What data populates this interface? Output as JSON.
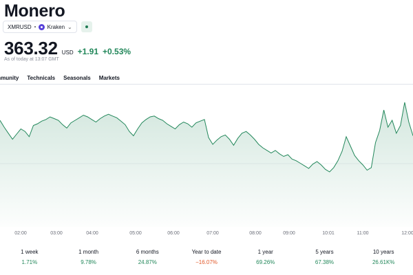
{
  "header": {
    "title": "Monero",
    "symbol": "XMRUSD",
    "exchange": "Kraken"
  },
  "quote": {
    "price": "363.32",
    "currency": "USD",
    "change_abs": "+1.91",
    "change_pct": "+0.53%",
    "as_of": "As of today at 13:07 GMT"
  },
  "tabs": [
    {
      "label": "mmunity"
    },
    {
      "label": "Technicals"
    },
    {
      "label": "Seasonals"
    },
    {
      "label": "Markets"
    }
  ],
  "chart_data": {
    "type": "area",
    "x_ticks": [
      "02:00",
      "03:00",
      "04:00",
      "05:00",
      "06:00",
      "07:00",
      "08:00",
      "09:00",
      "10:01",
      "11:00",
      "12:00"
    ],
    "y_range": [
      356,
      372
    ],
    "line_color": "#22875a",
    "values": [
      368.4,
      367.6,
      366.9,
      366.2,
      366.8,
      367.4,
      367.1,
      366.5,
      367.8,
      368.0,
      368.3,
      368.5,
      368.8,
      368.6,
      368.4,
      367.9,
      367.5,
      368.1,
      368.4,
      368.7,
      369.0,
      368.8,
      368.5,
      368.2,
      368.6,
      368.9,
      369.1,
      368.9,
      368.7,
      368.3,
      367.9,
      367.1,
      366.6,
      367.4,
      368.1,
      368.5,
      368.8,
      368.9,
      368.6,
      368.4,
      368.0,
      367.7,
      367.4,
      367.9,
      368.2,
      368.0,
      367.6,
      368.1,
      368.3,
      368.5,
      366.4,
      365.6,
      366.1,
      366.5,
      366.7,
      366.2,
      365.5,
      366.3,
      366.9,
      367.1,
      366.7,
      366.2,
      365.6,
      365.2,
      364.9,
      364.6,
      364.9,
      364.5,
      364.2,
      364.4,
      363.9,
      363.7,
      363.4,
      363.1,
      362.8,
      363.3,
      363.6,
      363.2,
      362.7,
      362.4,
      362.9,
      363.7,
      364.8,
      366.5,
      365.4,
      364.3,
      363.7,
      363.2,
      362.6,
      362.9,
      365.8,
      367.2,
      369.6,
      367.6,
      368.4,
      366.9,
      367.8,
      370.5,
      368.2,
      366.6
    ]
  },
  "performance": [
    {
      "label": "1 week",
      "value": "1.71%",
      "dir": "pos"
    },
    {
      "label": "1 month",
      "value": "9.78%",
      "dir": "pos"
    },
    {
      "label": "6 months",
      "value": "24.87%",
      "dir": "pos"
    },
    {
      "label": "Year to date",
      "value": "−16.07%",
      "dir": "neg"
    },
    {
      "label": "1 year",
      "value": "69.26%",
      "dir": "pos"
    },
    {
      "label": "5 years",
      "value": "67.38%",
      "dir": "pos"
    },
    {
      "label": "10 years",
      "value": "26.61K%",
      "dir": "pos"
    }
  ]
}
